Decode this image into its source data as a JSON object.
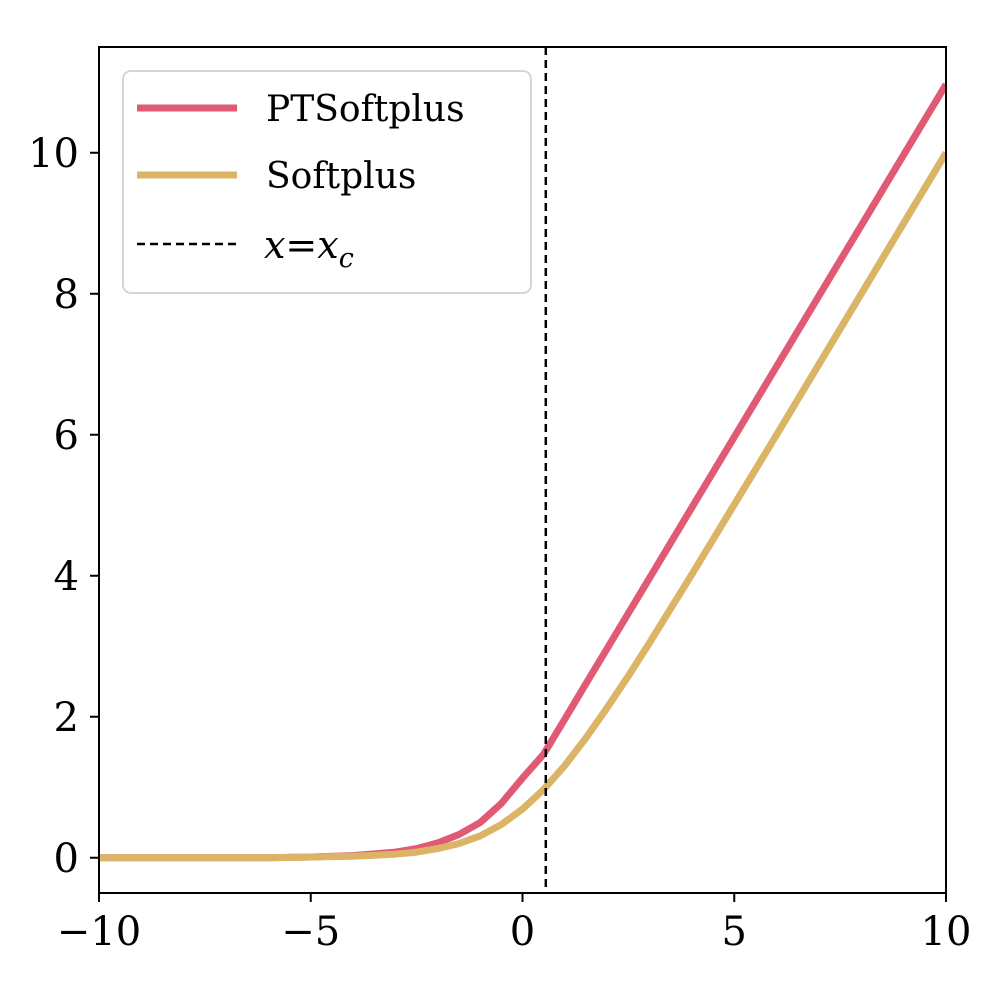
{
  "chart_data": {
    "type": "line",
    "title": "",
    "xlabel": "",
    "ylabel": "",
    "xlim": [
      -10,
      10
    ],
    "ylim": [
      -0.5,
      11.5
    ],
    "xticks": [
      -10,
      -5,
      0,
      5,
      10
    ],
    "xtick_labels": [
      "−10",
      "−5",
      "0",
      "5",
      "10"
    ],
    "yticks": [
      0,
      2,
      4,
      6,
      8,
      10
    ],
    "ytick_labels": [
      "0",
      "2",
      "4",
      "6",
      "8",
      "10"
    ],
    "grid": false,
    "legend_position": "top-left",
    "series": [
      {
        "name": "PTSoftplus",
        "color": "#e05a74",
        "x": [
          -10,
          -8,
          -6,
          -5,
          -4,
          -3,
          -2.5,
          -2,
          -1.5,
          -1,
          -0.5,
          0,
          0.5,
          1,
          1.5,
          2,
          3,
          4,
          5,
          6,
          7,
          8,
          9,
          10
        ],
        "y": [
          0.0,
          0.0,
          0.0,
          0.01,
          0.03,
          0.08,
          0.13,
          0.21,
          0.33,
          0.5,
          0.77,
          1.13,
          1.47,
          1.97,
          2.47,
          2.97,
          3.97,
          4.97,
          5.97,
          6.97,
          7.97,
          8.97,
          9.97,
          10.97
        ]
      },
      {
        "name": "Softplus",
        "color": "#dbb466",
        "x": [
          -10,
          -8,
          -6,
          -5,
          -4,
          -3,
          -2.5,
          -2,
          -1.5,
          -1,
          -0.5,
          0,
          0.5,
          1,
          1.5,
          2,
          2.5,
          3,
          4,
          5,
          6,
          7,
          8,
          9,
          10
        ],
        "y": [
          0.0,
          0.0,
          0.0,
          0.01,
          0.02,
          0.05,
          0.08,
          0.13,
          0.2,
          0.31,
          0.47,
          0.69,
          0.97,
          1.31,
          1.7,
          2.13,
          2.58,
          3.05,
          4.02,
          5.01,
          6.0,
          7.0,
          8.0,
          9.0,
          10.0
        ]
      }
    ],
    "vline": {
      "label": "x=x",
      "label_subscript": "c",
      "x": 0.55,
      "color": "#000000",
      "style": "dashed"
    }
  }
}
